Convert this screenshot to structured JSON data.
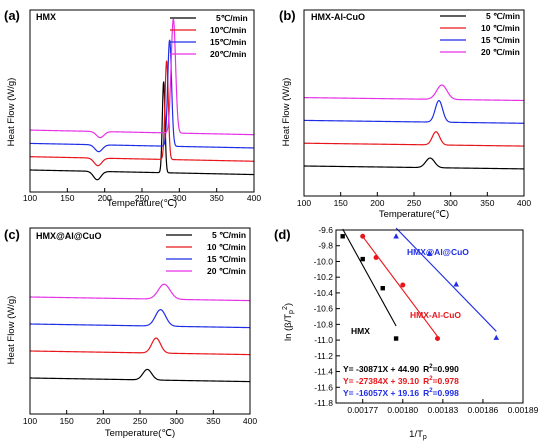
{
  "panels": [
    {
      "id": "a",
      "label": "(a)",
      "sample": "HMX",
      "xlabel": "Temperature(℃)",
      "ylabel": "Heat Flow (W/g)",
      "xticks": [
        100,
        150,
        200,
        250,
        300,
        350,
        400
      ],
      "legend": [
        "5℃/min",
        "10℃/min",
        "15℃/min",
        "20℃/min"
      ]
    },
    {
      "id": "b",
      "label": "(b)",
      "sample": "HMX-Al-CuO",
      "xlabel": "Temperature(℃)",
      "ylabel": "Heat Flow (W/g)",
      "xticks": [
        100,
        150,
        200,
        250,
        300,
        350,
        400
      ],
      "legend": [
        "5 ℃/min",
        "10 ℃/min",
        "15 ℃/min",
        "20 ℃/min"
      ]
    },
    {
      "id": "c",
      "label": "(c)",
      "sample": "HMX@Al@CuO",
      "xlabel": "Temperature(℃)",
      "ylabel": "Heat Flow (W/g)",
      "xticks": [
        100,
        150,
        200,
        250,
        300,
        350,
        400
      ],
      "legend": [
        "5 ℃/min",
        "10 ℃/min",
        "15 ℃/min",
        "20 ℃/min"
      ]
    }
  ],
  "kissinger": {
    "label": "(d)",
    "xlabel": "1/T",
    "xlabel_sub": "p",
    "ylabel_pre": "ln (β/T",
    "ylabel_sub": "p",
    "ylabel_sup": "2",
    "ylabel_post": ")",
    "xticks": [
      "0.00177",
      "0.00180",
      "0.00183",
      "0.00186",
      "0.00189"
    ],
    "yticks": [
      "-9.6",
      "-9.8",
      "-10.0",
      "-10.2",
      "-10.4",
      "-10.6",
      "-10.8",
      "-11.0",
      "-11.2",
      "-11.4",
      "-11.6",
      "-11.8"
    ],
    "series_labels": [
      "HMX",
      "HMX-Al-CuO",
      "HMX@Al@CuO"
    ],
    "equations": [
      {
        "eq": "Y= -30871X + 44.90",
        "r_pre": "R",
        "r_sup": "2",
        "r_post": "=0.990"
      },
      {
        "eq": "Y= -27384X + 39.10",
        "r_pre": "R",
        "r_sup": "2",
        "r_post": "=0.978"
      },
      {
        "eq": "Y= -16057X + 19.16",
        "r_pre": "R",
        "r_sup": "2",
        "r_post": "=0.998"
      }
    ]
  },
  "colors": {
    "black": "#000000",
    "red": "#e8161b",
    "blue": "#1f2ee6",
    "magenta": "#e632e6"
  },
  "chart_data": [
    {
      "type": "line",
      "panel": "a",
      "xlim": [
        100,
        400
      ],
      "series": [
        {
          "name": "5℃/min",
          "color": "#000000",
          "baseline": 0.0,
          "peaks": [
            [
              190,
              -0.22,
              5
            ],
            [
              279,
              2.4,
              1.8
            ]
          ]
        },
        {
          "name": "10℃/min",
          "color": "#e8161b",
          "baseline": 0.35,
          "peaks": [
            [
              191,
              -0.2,
              5
            ],
            [
              283,
              2.6,
              2.2
            ]
          ]
        },
        {
          "name": "15℃/min",
          "color": "#1f2ee6",
          "baseline": 0.7,
          "peaks": [
            [
              192,
              -0.18,
              5
            ],
            [
              287,
              2.8,
              2.6
            ]
          ]
        },
        {
          "name": "20℃/min",
          "color": "#e632e6",
          "baseline": 1.05,
          "peaks": [
            [
              194,
              -0.16,
              5
            ],
            [
              292,
              3.0,
              3.0
            ]
          ]
        }
      ]
    },
    {
      "type": "line",
      "panel": "b",
      "xlim": [
        100,
        400
      ],
      "series": [
        {
          "name": "5 ℃/min",
          "color": "#000000",
          "baseline": 0.0,
          "peaks": [
            [
              272,
              0.4,
              6
            ]
          ]
        },
        {
          "name": "10 ℃/min",
          "color": "#e8161b",
          "baseline": 0.95,
          "peaks": [
            [
              280,
              0.55,
              5
            ]
          ]
        },
        {
          "name": "15 ℃/min",
          "color": "#1f2ee6",
          "baseline": 1.9,
          "peaks": [
            [
              284,
              0.9,
              5
            ]
          ]
        },
        {
          "name": "20 ℃/min",
          "color": "#e632e6",
          "baseline": 2.85,
          "peaks": [
            [
              288,
              0.6,
              7
            ]
          ]
        }
      ]
    },
    {
      "type": "line",
      "panel": "c",
      "xlim": [
        100,
        400
      ],
      "series": [
        {
          "name": "5 ℃/min",
          "color": "#000000",
          "baseline": 0.0,
          "peaks": [
            [
              260,
              0.35,
              6
            ]
          ]
        },
        {
          "name": "10 ℃/min",
          "color": "#e8161b",
          "baseline": 0.9,
          "peaks": [
            [
              272,
              0.5,
              6
            ]
          ]
        },
        {
          "name": "15 ℃/min",
          "color": "#1f2ee6",
          "baseline": 1.8,
          "peaks": [
            [
              278,
              0.55,
              7
            ]
          ]
        },
        {
          "name": "20 ℃/min",
          "color": "#e632e6",
          "baseline": 2.7,
          "peaks": [
            [
              283,
              0.5,
              8
            ]
          ]
        }
      ]
    },
    {
      "type": "scatter",
      "panel": "d",
      "xlim": [
        0.00175,
        0.00189
      ],
      "ylim": [
        -11.8,
        -9.6
      ],
      "series": [
        {
          "name": "HMX",
          "color": "#000000",
          "marker": "square",
          "x": [
            0.001755,
            0.00177,
            0.001785,
            0.001795
          ],
          "y": [
            -9.68,
            -9.97,
            -10.34,
            -10.98
          ]
        },
        {
          "name": "HMX-Al-CuO",
          "color": "#e8161b",
          "marker": "circle",
          "x": [
            0.00177,
            0.00178,
            0.0018,
            0.001826
          ],
          "y": [
            -9.68,
            -9.95,
            -10.3,
            -10.98
          ]
        },
        {
          "name": "HMX@Al@CuO",
          "color": "#1f2ee6",
          "marker": "triangle",
          "x": [
            0.001795,
            0.00182,
            0.00184,
            0.00187
          ],
          "y": [
            -9.68,
            -9.9,
            -10.29,
            -10.97
          ]
        }
      ]
    }
  ]
}
